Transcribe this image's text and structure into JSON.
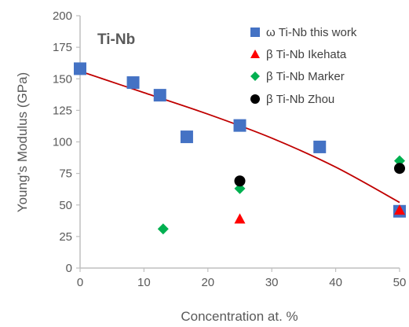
{
  "chart_data": {
    "type": "scatter",
    "title": "",
    "annotation": "Ti-Nb",
    "xlabel": "Concentration at. %",
    "ylabel": "Young's Modulus (GPa)",
    "xlim": [
      0,
      50
    ],
    "ylim": [
      0,
      200
    ],
    "x_ticks": [
      "0",
      "10",
      "20",
      "30",
      "40",
      "50"
    ],
    "y_ticks": [
      "0",
      "25",
      "50",
      "75",
      "100",
      "125",
      "150",
      "175",
      "200"
    ],
    "grid": false,
    "legend_position": "top-right",
    "series": [
      {
        "name": "ω Ti-Nb this work",
        "marker": "square",
        "color": "#4472C4",
        "points": [
          {
            "x": 0,
            "y": 158
          },
          {
            "x": 8.3,
            "y": 147
          },
          {
            "x": 12.5,
            "y": 137
          },
          {
            "x": 16.7,
            "y": 104
          },
          {
            "x": 25,
            "y": 113
          },
          {
            "x": 37.5,
            "y": 96
          },
          {
            "x": 50,
            "y": 45
          }
        ]
      },
      {
        "name": "β Ti-Nb Ikehata",
        "marker": "triangle",
        "color": "#FF0000",
        "points": [
          {
            "x": 25,
            "y": 39
          },
          {
            "x": 50,
            "y": 46
          }
        ]
      },
      {
        "name": "β Ti-Nb Marker",
        "marker": "diamond",
        "color": "#00B050",
        "points": [
          {
            "x": 13,
            "y": 31
          },
          {
            "x": 25,
            "y": 63
          },
          {
            "x": 50,
            "y": 85
          }
        ]
      },
      {
        "name": "β Ti-Nb Zhou",
        "marker": "circle",
        "color": "#000000",
        "points": [
          {
            "x": 25,
            "y": 69
          },
          {
            "x": 50,
            "y": 79
          }
        ]
      }
    ],
    "trendline": {
      "series": "ω Ti-Nb this work",
      "color": "#C00000",
      "points": [
        {
          "x": 0,
          "y": 156
        },
        {
          "x": 10,
          "y": 139
        },
        {
          "x": 20,
          "y": 122
        },
        {
          "x": 30,
          "y": 103
        },
        {
          "x": 40,
          "y": 80
        },
        {
          "x": 50,
          "y": 52
        }
      ]
    }
  }
}
